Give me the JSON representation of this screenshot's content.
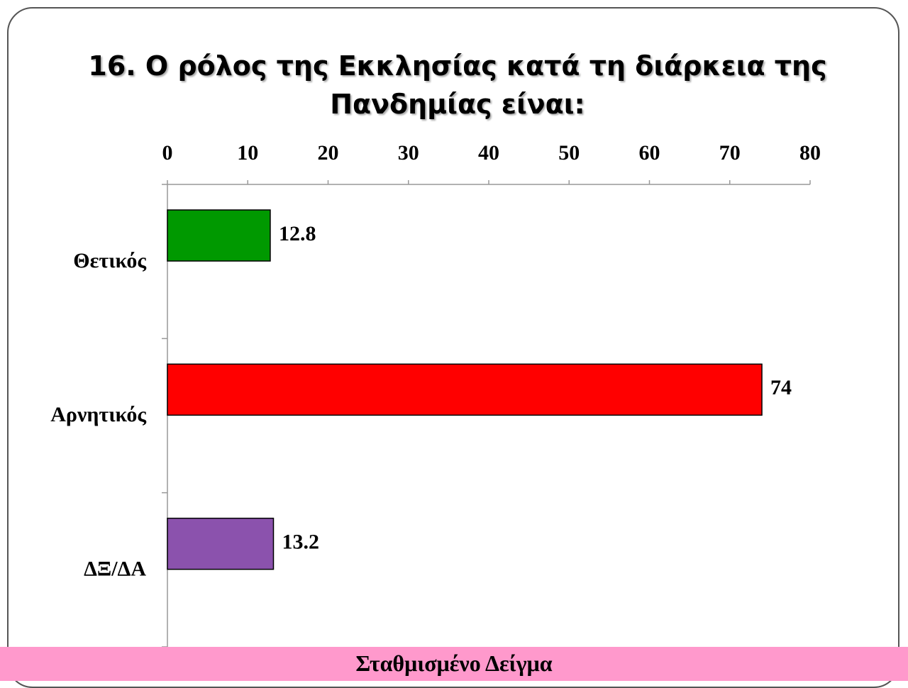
{
  "chart_data": {
    "type": "hbar",
    "title": "16. Ο ρόλος της Εκκλησίας κατά τη διάρκεια της Πανδημίας είναι:",
    "footer": "Σταθμισμένο Δείγμα",
    "categories": [
      "Θετικός",
      "Αρνητικός",
      "ΔΞ/ΔΑ"
    ],
    "values": [
      12.8,
      74,
      13.2
    ],
    "colors": [
      "#009900",
      "#ff0000",
      "#8b52ad"
    ],
    "xlim": [
      0,
      80
    ],
    "xticks": [
      0,
      10,
      20,
      30,
      40,
      50,
      60,
      70,
      80
    ]
  }
}
